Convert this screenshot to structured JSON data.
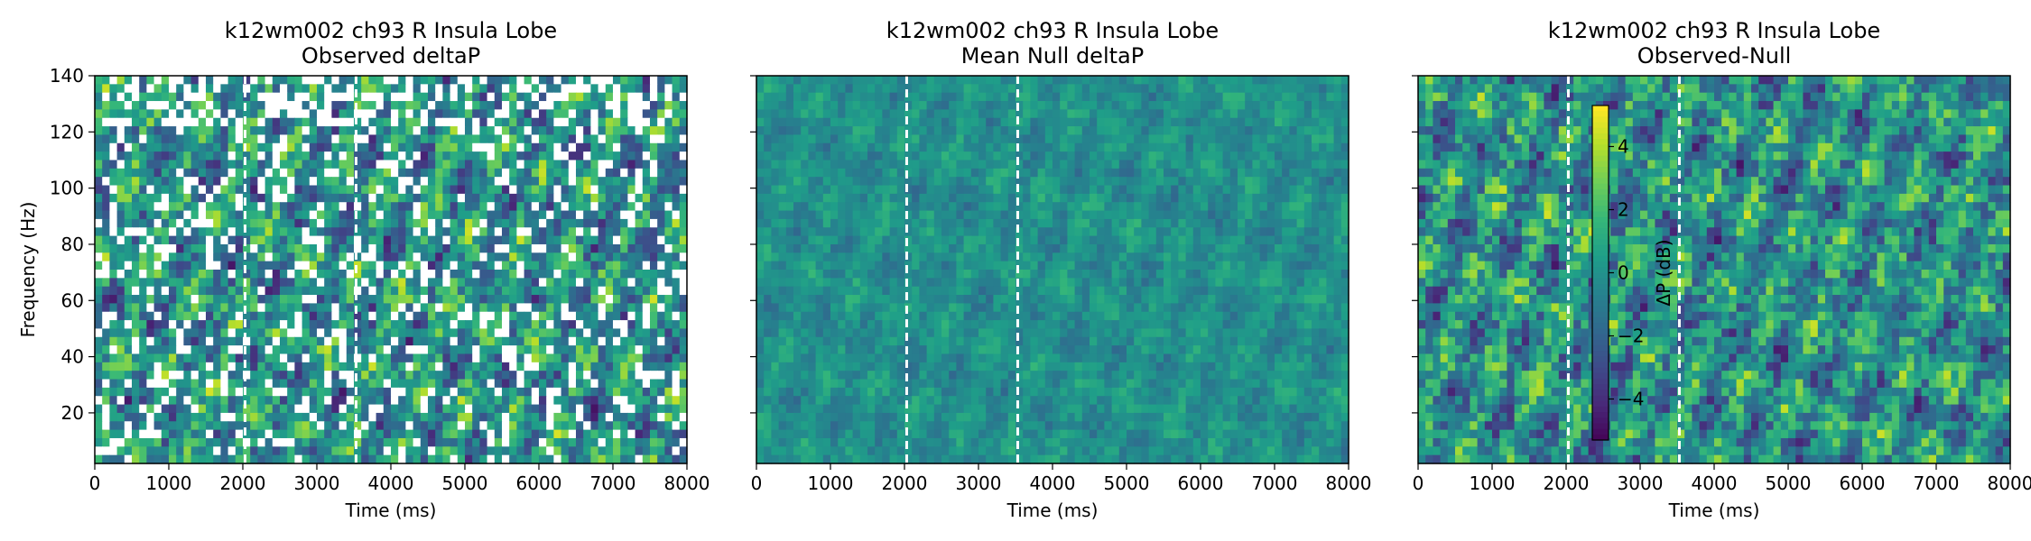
{
  "chart_data": [
    {
      "type": "heatmap",
      "title": "k12wm002 ch93 R Insula Lobe",
      "subtitle": "Observed deltaP",
      "xlabel": "Time (ms)",
      "ylabel": "Frequency (Hz)",
      "xlim": [
        0,
        8000
      ],
      "ylim": [
        2,
        140
      ],
      "xticks": [
        0,
        1000,
        2000,
        3000,
        4000,
        5000,
        6000,
        7000,
        8000
      ],
      "yticks": [
        20,
        40,
        60,
        80,
        100,
        120,
        140
      ],
      "event_lines_ms": [
        2030,
        3530
      ],
      "colormap": "viridis",
      "masked_cells_color": "#ffffff",
      "value_range_db": [
        -5.3,
        5.3
      ]
    },
    {
      "type": "heatmap",
      "title": "k12wm002 ch93 R Insula Lobe",
      "subtitle": "Mean Null deltaP",
      "xlabel": "Time (ms)",
      "ylabel": "",
      "xlim": [
        0,
        8000
      ],
      "ylim": [
        2,
        140
      ],
      "xticks": [
        0,
        1000,
        2000,
        3000,
        4000,
        5000,
        6000,
        7000,
        8000
      ],
      "yticks": [
        20,
        40,
        60,
        80,
        100,
        120,
        140
      ],
      "event_lines_ms": [
        2030,
        3530
      ],
      "colormap": "viridis",
      "value_range_db": [
        -0.6,
        0.6
      ]
    },
    {
      "type": "heatmap",
      "title": "k12wm002 ch93 R Insula Lobe",
      "subtitle": "Observed-Null",
      "xlabel": "Time (ms)",
      "ylabel": "",
      "xlim": [
        0,
        8000
      ],
      "ylim": [
        2,
        140
      ],
      "xticks": [
        0,
        1000,
        2000,
        3000,
        4000,
        5000,
        6000,
        7000,
        8000
      ],
      "yticks": [
        20,
        40,
        60,
        80,
        100,
        120,
        140
      ],
      "event_lines_ms": [
        2030,
        3530
      ],
      "colormap": "viridis",
      "value_range_db": [
        -5.3,
        5.3
      ],
      "colorbar": {
        "label": "ΔP (dB)",
        "range": [
          -5.3,
          5.3
        ],
        "ticks": [
          -4,
          -2,
          0,
          2,
          4
        ],
        "tick_labels": [
          "−4",
          "−2",
          "0",
          "2",
          "4"
        ]
      }
    }
  ]
}
